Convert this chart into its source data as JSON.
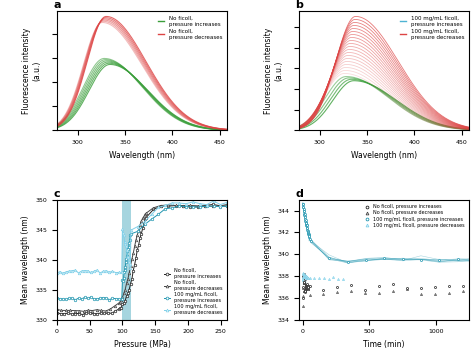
{
  "panel_a": {
    "legend": [
      "No ficoll,\npressure increases",
      "No ficoll,\npressure decreases"
    ],
    "green_color": "#3a9e3a",
    "red_color": "#d44",
    "xlabel": "Wavelength (nm)",
    "ylabel": "Fluorescence intensity\n(a.u.)",
    "label": "a",
    "n_green": 6,
    "n_red": 6
  },
  "panel_b": {
    "legend": [
      "100 mg/mL ficoll,\npressure increases",
      "100 mg/mL ficoll,\npressure decreases"
    ],
    "green_color": "#3a9e3a",
    "red_color": "#d44",
    "blue_legend_color": "#4eb3d3",
    "xlabel": "Wavelength (nm)",
    "ylabel": "Fluorescence intensity\n(a.u.)",
    "label": "b",
    "n_green": 4,
    "n_red": 20
  },
  "panel_c": {
    "xlabel": "Pressure (MPa)",
    "ylabel": "Mean wavelength (nm)",
    "label": "c",
    "ylim": [
      330,
      350
    ],
    "xlim": [
      0,
      260
    ],
    "yticks": [
      330,
      335,
      340,
      345,
      350
    ],
    "xticks": [
      0,
      50,
      100,
      150,
      200,
      250
    ],
    "dark_color": "#222222",
    "dark_color2": "#444444",
    "blue_color": "#2196b0",
    "blue_color2": "#7ecfe8"
  },
  "panel_d": {
    "xlabel": "Time (min)",
    "ylabel": "Mean wavelength (nm)",
    "label": "d",
    "ylim": [
      334,
      345
    ],
    "xlim": [
      -30,
      1250
    ],
    "yticks": [
      334,
      336,
      338,
      340,
      342,
      344
    ],
    "xticks": [
      0,
      500,
      1000
    ],
    "dark_color": "#222222",
    "dark_color2": "#444444",
    "blue_color": "#2196b0",
    "blue_color2": "#7ecfe8"
  }
}
